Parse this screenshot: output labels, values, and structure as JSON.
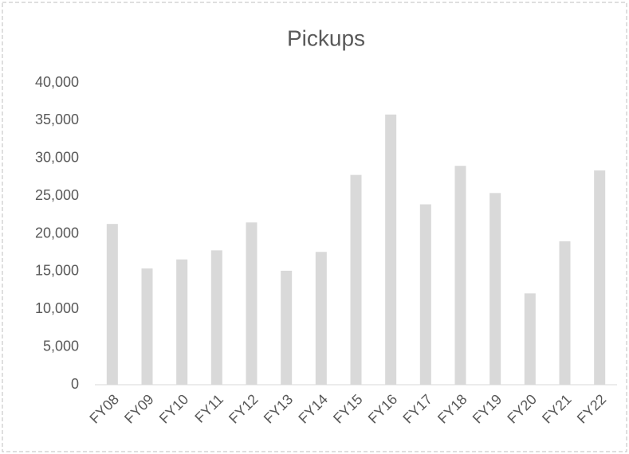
{
  "chart_data": {
    "type": "bar",
    "title": "Pickups",
    "categories": [
      "FY08",
      "FY09",
      "FY10",
      "FY11",
      "FY12",
      "FY13",
      "FY14",
      "FY15",
      "FY16",
      "FY17",
      "FY18",
      "FY19",
      "FY20",
      "FY21",
      "FY22"
    ],
    "values": [
      21300,
      15400,
      16600,
      17800,
      21500,
      15100,
      17600,
      27800,
      35800,
      23900,
      29000,
      25400,
      12100,
      19000,
      28400
    ],
    "color": "#d9d9d9",
    "ylim": [
      0,
      40000
    ],
    "yticks": [
      0,
      {
        "value": 5000,
        "label": "5,000"
      },
      {
        "value": 10000,
        "label": "10,000"
      },
      {
        "value": 15000,
        "label": "15,000"
      },
      {
        "value": 20000,
        "label": "20,000"
      },
      {
        "value": 25000,
        "label": "25,000"
      },
      {
        "value": 30000,
        "label": "30,000"
      },
      {
        "value": 35000,
        "label": "35,000"
      },
      {
        "value": 40000,
        "label": "40,000"
      }
    ],
    "grid": false
  }
}
